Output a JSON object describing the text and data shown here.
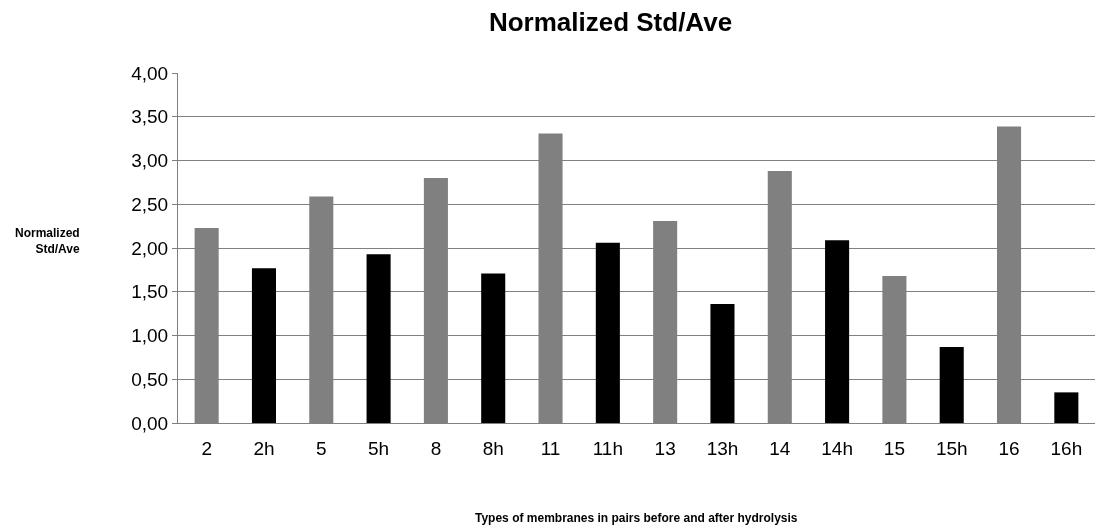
{
  "chart_data": {
    "type": "bar",
    "title": "Normalized Std/Ave",
    "xlabel": "Types of membranes in pairs before and after hydrolysis",
    "ylabel": "Normalized\nStd/Ave",
    "categories": [
      "2",
      "2h",
      "5",
      "5h",
      "8",
      "8h",
      "11",
      "11h",
      "13",
      "13h",
      "14",
      "14h",
      "15",
      "15h",
      "16",
      "16h"
    ],
    "values": [
      2.23,
      1.77,
      2.59,
      1.93,
      2.8,
      1.71,
      3.31,
      2.06,
      2.31,
      1.36,
      2.88,
      2.09,
      1.68,
      0.87,
      3.39,
      0.35
    ],
    "colors": [
      "#808080",
      "#000000",
      "#808080",
      "#000000",
      "#808080",
      "#000000",
      "#808080",
      "#000000",
      "#808080",
      "#000000",
      "#808080",
      "#000000",
      "#808080",
      "#000000",
      "#808080",
      "#000000"
    ],
    "ylim": [
      0,
      4
    ],
    "yticks": [
      {
        "value": 0,
        "label": "0,00"
      },
      {
        "value": 0.5,
        "label": "0,50"
      },
      {
        "value": 1,
        "label": "1,00"
      },
      {
        "value": 1.5,
        "label": "1,50"
      },
      {
        "value": 2,
        "label": "2,00"
      },
      {
        "value": 2.5,
        "label": "2,50"
      },
      {
        "value": 3,
        "label": "3,00"
      },
      {
        "value": 3.5,
        "label": "3,50"
      },
      {
        "value": 4,
        "label": "4,00"
      }
    ],
    "grid": "y"
  }
}
